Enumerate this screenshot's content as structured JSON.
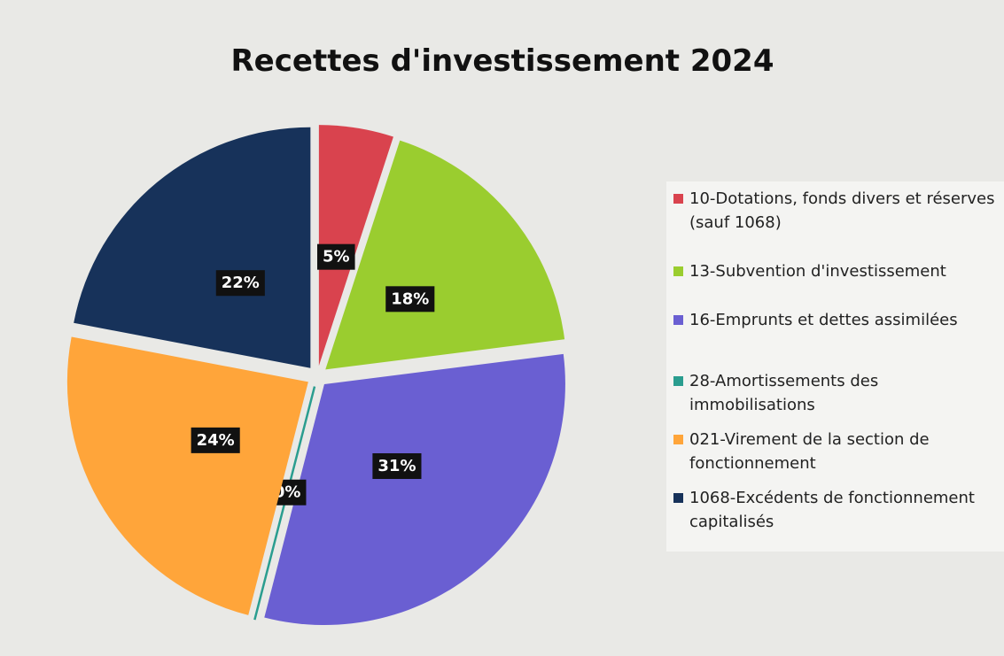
{
  "chart_data": {
    "type": "pie",
    "title": "Recettes d'investissement 2024",
    "categories": [
      "10-Dotations, fonds divers et réserves (sauf 1068)",
      "13-Subvention d'investissement",
      "16-Emprunts et dettes assimilées",
      "28-Amortissements des immobilisations",
      "021-Virement de la section de fonctionnement",
      "1068-Excédents de fonctionnement capitalisés"
    ],
    "values": [
      5,
      18,
      31,
      0,
      24,
      22
    ],
    "value_labels": [
      "5%",
      "18%",
      "31%",
      "0%",
      "24%",
      "22%"
    ],
    "colors": [
      "#d9434e",
      "#9acd2f",
      "#6a5fd2",
      "#2a9d8f",
      "#ffa53a",
      "#17325a"
    ],
    "legend": "right"
  }
}
